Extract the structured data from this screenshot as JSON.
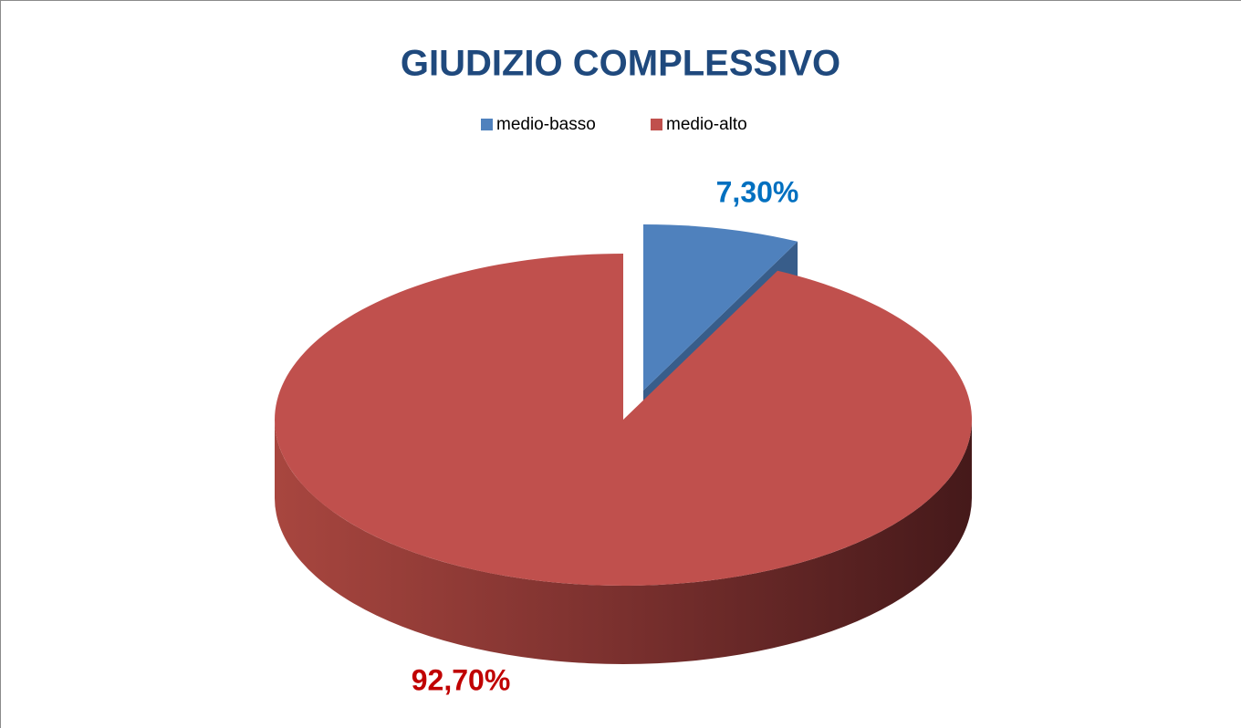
{
  "chart_data": {
    "type": "pie3d",
    "title": "GIUDIZIO COMPLESSIVO",
    "categories": [
      "medio-basso",
      "medio-alto"
    ],
    "values": [
      7.3,
      92.7
    ],
    "value_labels": [
      "7,30%",
      "92,70%"
    ],
    "colors": [
      "#4f81bd",
      "#c0504d"
    ],
    "label_colors": [
      "#0070c0",
      "#c00000"
    ],
    "legend": "top"
  }
}
